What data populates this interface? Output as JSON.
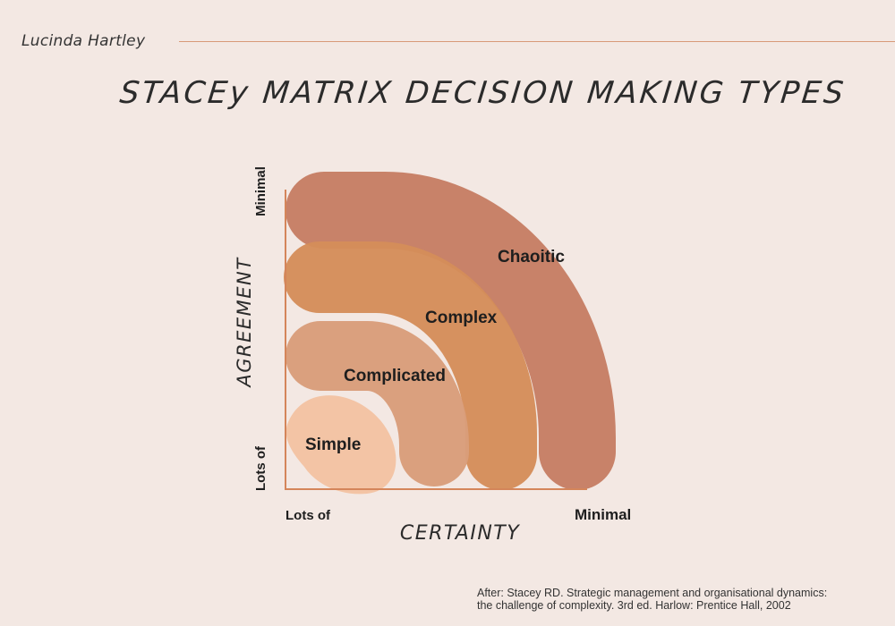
{
  "header": {
    "author": "Lucinda Hartley",
    "title": "STACEy MATRIX DECISION MAKING TYPES"
  },
  "axes": {
    "y": {
      "label": "AGREEMENT",
      "top_label": "Minimal",
      "bottom_label": "Lots of"
    },
    "x": {
      "label": "CERTAINTY",
      "left_label": "Lots of",
      "right_label": "Minimal"
    }
  },
  "zones": [
    {
      "label": "Chaoitic",
      "color": "#c67e64"
    },
    {
      "label": "Complex",
      "color": "#d48e5a"
    },
    {
      "label": "Complicated",
      "color": "#d99d7a"
    },
    {
      "label": "Simple",
      "color": "#f2c3a2"
    }
  ],
  "colors": {
    "axis": "#d4855a",
    "text": "#1e1e1e",
    "background": "#f3e8e3"
  },
  "footer": {
    "line1": "After: Stacey RD. Strategic management and organisational dynamics:",
    "line2": "the challenge of complexity. 3rd ed. Harlow: Prentice Hall, 2002"
  }
}
